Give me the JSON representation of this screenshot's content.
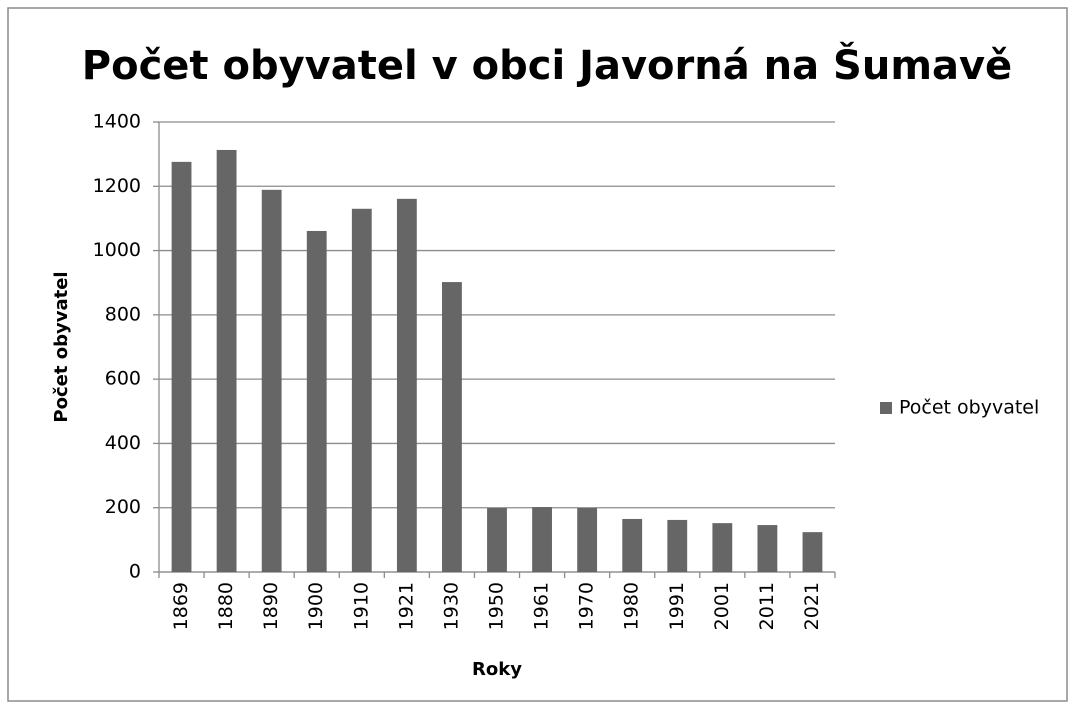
{
  "chart_data": {
    "type": "bar",
    "title": "Počet obyvatel v obci Javorná na Šumavě",
    "x_label": "Roky",
    "y_label": "Počet obyvatel",
    "categories": [
      "1869",
      "1880",
      "1890",
      "1900",
      "1910",
      "1921",
      "1930",
      "1950",
      "1961",
      "1970",
      "1980",
      "1991",
      "2001",
      "2011",
      "2021"
    ],
    "series": [
      {
        "name": "Počet obyvatel",
        "color": "#666666",
        "values": [
          1276,
          1313,
          1189,
          1061,
          1130,
          1161,
          902,
          199,
          202,
          199,
          165,
          162,
          152,
          146,
          124
        ]
      }
    ],
    "ylim": [
      0,
      1400
    ],
    "yticks": [
      0,
      200,
      400,
      600,
      800,
      1000,
      1200,
      1400
    ],
    "grid": true,
    "legend": "right"
  }
}
